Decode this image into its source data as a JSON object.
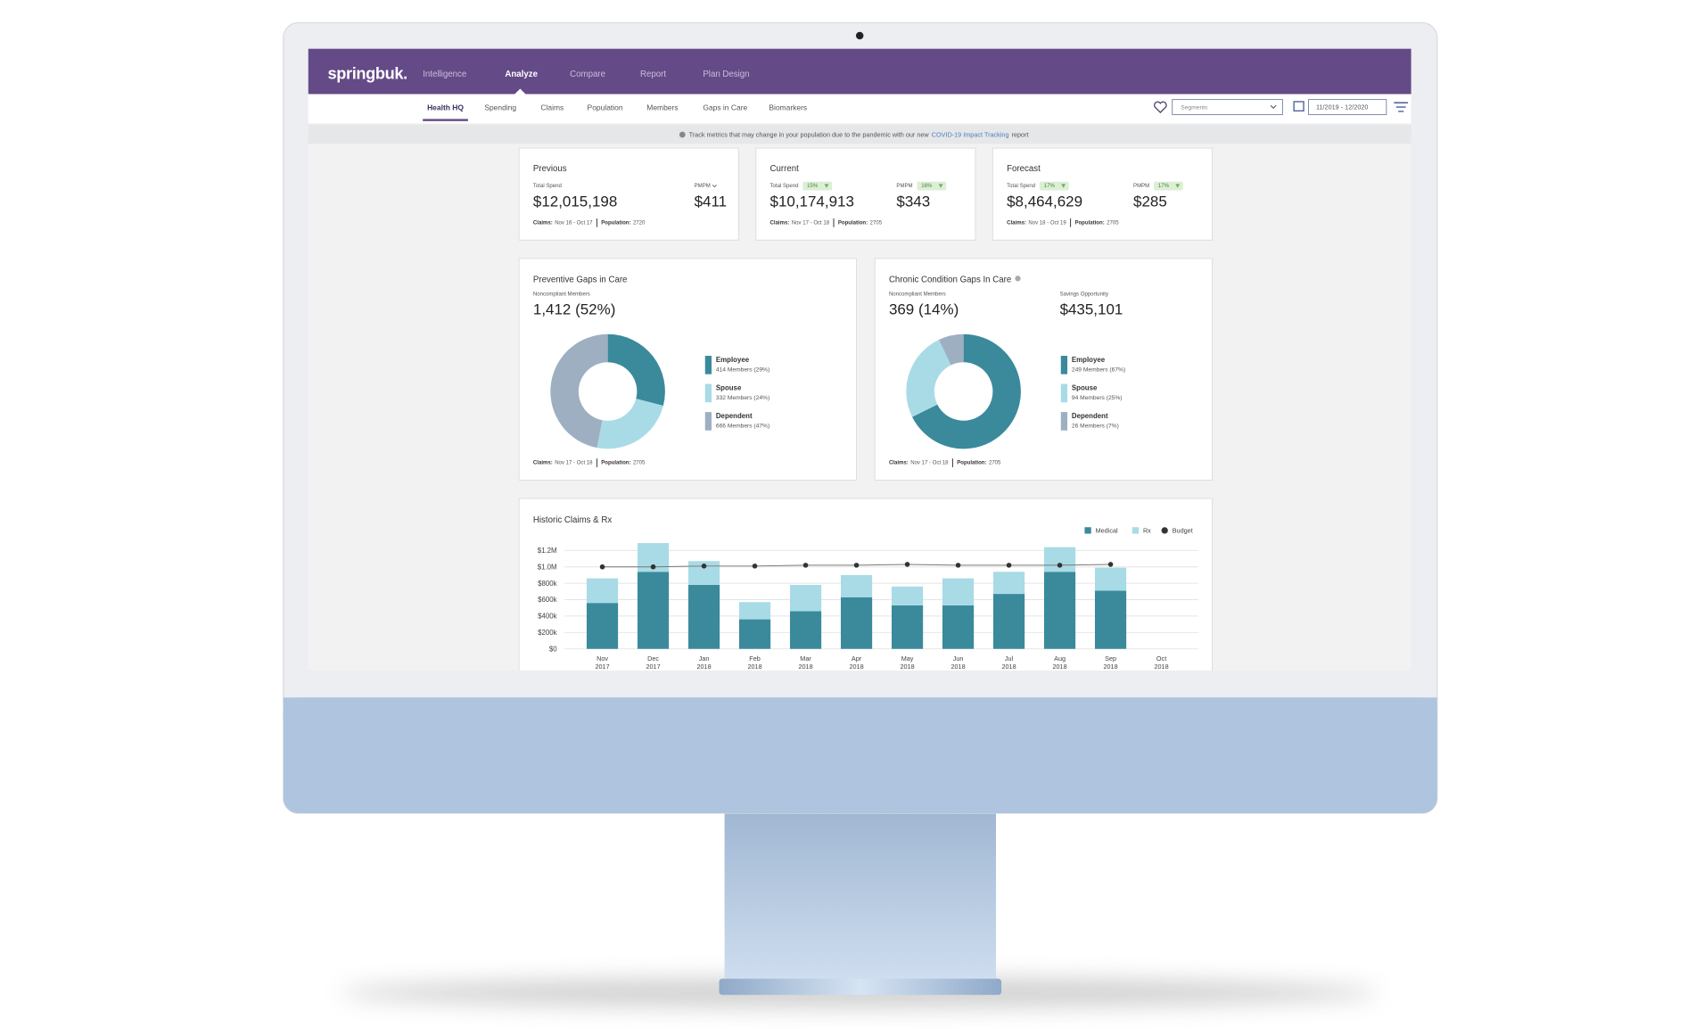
{
  "header": {
    "logo": "springbuk.",
    "nav": [
      "Intelligence",
      "Analyze",
      "Compare",
      "Report",
      "Plan Design"
    ]
  },
  "subnav": [
    "Health HQ",
    "Spending",
    "Claims",
    "Population",
    "Members",
    "Gaps in Care",
    "Biomarkers"
  ],
  "controls": {
    "segments": "Segments",
    "date_range": "11/2019 - 12/2020"
  },
  "banner": {
    "text": "Track metrics that may change in your population due to the pandemic with our new",
    "link": "COVID-19 Impact Tracking",
    "suffix": "report"
  },
  "summary_cards": [
    {
      "title": "Previous",
      "spend_label": "Total Spend",
      "spend": "$12,015,198",
      "pmpm_label": "PMPM",
      "pmpm": "$411",
      "footer": {
        "claims_label": "Claims:",
        "claims": "Nov 16 - Oct 17",
        "population_label": "Population:",
        "population": 2720
      }
    },
    {
      "title": "Current",
      "spend_label": "Total Spend",
      "spend_change": "15%",
      "spend": "$10,174,913",
      "pmpm_label": "PMPM",
      "pmpm_change": "16%",
      "pmpm": "$343",
      "footer": {
        "claims_label": "Claims:",
        "claims": "Nov 17 - Oct 18",
        "population_label": "Population:",
        "population": 2705
      }
    },
    {
      "title": "Forecast",
      "spend_label": "Total Spend",
      "spend_change": "17%",
      "spend": "$8,464,629",
      "pmpm_label": "PMPM",
      "pmpm_change": "17%",
      "pmpm": "$285",
      "footer": {
        "claims_label": "Claims:",
        "claims": "Nov 18 - Oct 19",
        "population_label": "Population:",
        "population": 2705
      }
    }
  ],
  "gap_cards": [
    {
      "title": "Preventive Gaps in Care",
      "metric_label": "Noncompliant Members",
      "metric": "1,412 (52%)",
      "chart": {
        "type": "pie",
        "segments": [
          {
            "name": "Employee",
            "value": 29,
            "label": "414 Members (29%)",
            "color": "#3a8a9c"
          },
          {
            "name": "Spouse",
            "value": 24,
            "label": "332 Members (24%)",
            "color": "#a8dbe6"
          },
          {
            "name": "Dependent",
            "value": 47,
            "label": "666 Members (47%)",
            "color": "#9eafc2"
          }
        ]
      },
      "footer": {
        "claims_label": "Claims:",
        "claims": "Nov 17 - Oct 18",
        "population_label": "Population:",
        "population": 2705
      }
    },
    {
      "title": "Chronic Condition Gaps In Care",
      "metric_label": "Noncompliant Members",
      "metric": "369 (14%)",
      "savings_label": "Savings Opportunity",
      "savings": "$435,101",
      "chart": {
        "type": "pie",
        "segments": [
          {
            "name": "Employee",
            "value": 67,
            "label": "249 Members (67%)",
            "color": "#3a8a9c"
          },
          {
            "name": "Spouse",
            "value": 25,
            "label": "94 Members (25%)",
            "color": "#a8dbe6"
          },
          {
            "name": "Dependent",
            "value": 7,
            "label": "26 Members (7%)",
            "color": "#9eafc2"
          }
        ]
      },
      "footer": {
        "claims_label": "Claims:",
        "claims": "Nov 17 - Oct 18",
        "population_label": "Population:",
        "population": 2705
      }
    }
  ],
  "historic_chart": {
    "type": "bar",
    "stacked": true,
    "title": "Historic Claims & Rx",
    "categories": [
      [
        "Nov",
        "2017"
      ],
      [
        "Dec",
        "2017"
      ],
      [
        "Jan",
        "2018"
      ],
      [
        "Feb",
        "2018"
      ],
      [
        "Mar",
        "2018"
      ],
      [
        "Apr",
        "2018"
      ],
      [
        "May",
        "2018"
      ],
      [
        "Jun",
        "2018"
      ],
      [
        "Jul",
        "2018"
      ],
      [
        "Aug",
        "2018"
      ],
      [
        "Sep",
        "2018"
      ],
      [
        "Oct",
        "2018"
      ]
    ],
    "series": [
      {
        "name": "Medical",
        "color": "#3a8a9c",
        "values": [
          560000,
          940000,
          780000,
          360000,
          460000,
          630000,
          530000,
          530000,
          670000,
          940000,
          710000,
          null
        ]
      },
      {
        "name": "Rx",
        "color": "#a8dbe6",
        "values": [
          300000,
          350000,
          290000,
          210000,
          320000,
          270000,
          230000,
          330000,
          270000,
          300000,
          280000,
          null
        ]
      },
      {
        "name": "Budget",
        "type": "line",
        "color": "#333333",
        "values": [
          1000000,
          1000000,
          1010000,
          1010000,
          1020000,
          1020000,
          1030000,
          1020000,
          1020000,
          1020000,
          1030000,
          null
        ]
      }
    ],
    "ylim": [
      0,
      1200000
    ],
    "yticks": [
      {
        "value": 0,
        "label": "$0"
      },
      {
        "value": 200000,
        "label": "$200k"
      },
      {
        "value": 400000,
        "label": "$400k"
      },
      {
        "value": 600000,
        "label": "$600k"
      },
      {
        "value": 800000,
        "label": "$800k"
      },
      {
        "value": 1000000,
        "label": "$1.0M"
      },
      {
        "value": 1200000,
        "label": "$1.2M"
      }
    ],
    "grid": true
  }
}
